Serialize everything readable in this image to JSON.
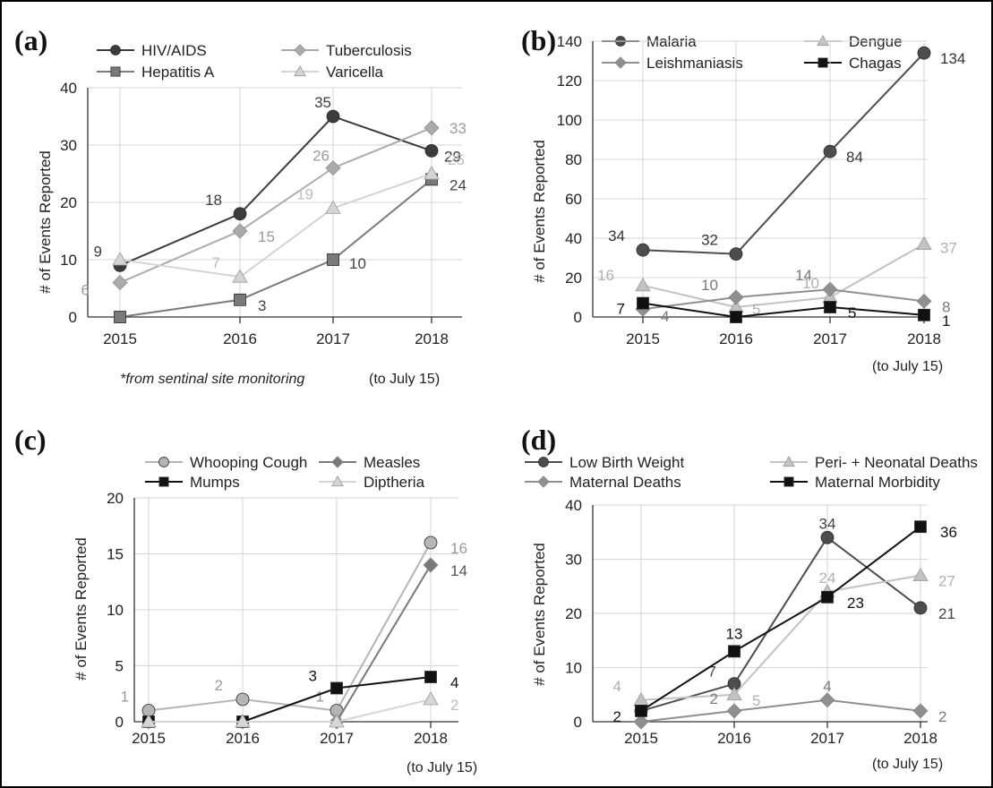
{
  "chart_data": [
    {
      "id": "a",
      "type": "line",
      "panel_label": "(a)",
      "ylabel": "# of Events Reported",
      "x": [
        "2015",
        "2016",
        "2017",
        "2018"
      ],
      "x_note": "(to July 15)",
      "footnote": "*from sentinal site monitoring",
      "ylim": [
        0,
        40
      ],
      "yticks": [
        "0",
        "10",
        "20",
        "30",
        "40"
      ],
      "grid": true,
      "legend_position": "top",
      "series": [
        {
          "name": "HIV/AIDS",
          "values": [
            9,
            18,
            35,
            29
          ],
          "labels": [
            "9",
            "18",
            "35",
            "29"
          ],
          "color": "#3c3c3c",
          "marker": "circle",
          "label_color": "#3c3c3c"
        },
        {
          "name": "Tuberculosis",
          "values": [
            6,
            15,
            26,
            33
          ],
          "labels": [
            "6",
            "15",
            "26",
            "33"
          ],
          "color": "#ababab",
          "marker": "diamond",
          "label_color": "#9a9a9a"
        },
        {
          "name": "Hepatitis A",
          "values": [
            0,
            3,
            10,
            24
          ],
          "labels": [
            "",
            "3",
            "10",
            "24"
          ],
          "color": "#7a7a7a",
          "marker": "square",
          "label_color": "#444444"
        },
        {
          "name": "Varicella",
          "values": [
            10,
            7,
            19,
            25
          ],
          "labels": [
            "",
            "7",
            "19",
            "25"
          ],
          "color": "#d4d4d4",
          "marker": "triangle",
          "label_color": "#bdbdbd"
        }
      ]
    },
    {
      "id": "b",
      "type": "line",
      "panel_label": "(b)",
      "ylabel": "# of Events Reported",
      "x": [
        "2015",
        "2016",
        "2017",
        "2018"
      ],
      "x_note": "(to  July 15)",
      "ylim": [
        0,
        140
      ],
      "yticks": [
        "0",
        "20",
        "40",
        "60",
        "80",
        "100",
        "120",
        "140"
      ],
      "grid": true,
      "legend_position": "top",
      "series": [
        {
          "name": "Malaria",
          "values": [
            34,
            32,
            84,
            134
          ],
          "labels": [
            "34",
            "32",
            "84",
            "134"
          ],
          "color": "#4d4d4d",
          "marker": "circle",
          "label_color": "#333333"
        },
        {
          "name": "Dengue",
          "values": [
            16,
            5,
            10,
            37
          ],
          "labels": [
            "16",
            "5",
            "10",
            "37"
          ],
          "color": "#c2c2c2",
          "marker": "triangle",
          "label_color": "#b0b0b0"
        },
        {
          "name": "Leishmaniasis",
          "values": [
            4,
            10,
            14,
            8
          ],
          "labels": [
            "4",
            "10",
            "14",
            "8"
          ],
          "color": "#8f8f8f",
          "marker": "diamond",
          "label_color": "#7a7a7a"
        },
        {
          "name": "Chagas",
          "values": [
            7,
            0,
            5,
            1
          ],
          "labels": [
            "7",
            "",
            "5",
            "1"
          ],
          "color": "#111111",
          "marker": "square",
          "label_color": "#111111"
        }
      ]
    },
    {
      "id": "c",
      "type": "line",
      "panel_label": "(c)",
      "ylabel": "# of Events Reported",
      "x": [
        "2015",
        "2016",
        "2017",
        "2018"
      ],
      "x_note": "(to  July 15)",
      "ylim": [
        0,
        20
      ],
      "yticks": [
        "0",
        "5",
        "10",
        "15",
        "20"
      ],
      "grid": true,
      "legend_position": "top",
      "series": [
        {
          "name": "Whooping Cough",
          "values": [
            1,
            2,
            1,
            16
          ],
          "labels": [
            "1",
            "2",
            "1",
            "16"
          ],
          "color": "#b5b5b5",
          "marker": "circle",
          "label_color": "#9a9a9a"
        },
        {
          "name": "Measles",
          "values": [
            0,
            0,
            0,
            14
          ],
          "labels": [
            "",
            "",
            "",
            "14"
          ],
          "color": "#7a7a7a",
          "marker": "diamond",
          "label_color": "#555555"
        },
        {
          "name": "Mumps",
          "values": [
            0,
            0,
            3,
            4
          ],
          "labels": [
            "",
            "",
            "3",
            "4"
          ],
          "color": "#111111",
          "marker": "square",
          "label_color": "#111111"
        },
        {
          "name": "Diptheria",
          "values": [
            0,
            0,
            0,
            2
          ],
          "labels": [
            "",
            "",
            "",
            "2"
          ],
          "color": "#d6d6d6",
          "marker": "triangle",
          "label_color": "#bdbdbd"
        }
      ]
    },
    {
      "id": "d",
      "type": "line",
      "panel_label": "(d)",
      "ylabel": "# of Events Reported",
      "x": [
        "2015",
        "2016",
        "2017",
        "2018"
      ],
      "x_note": "(to  July 15)",
      "ylim": [
        0,
        40
      ],
      "yticks": [
        "0",
        "10",
        "20",
        "30",
        "40"
      ],
      "grid": true,
      "legend_position": "top",
      "series": [
        {
          "name": "Low Birth Weight",
          "values": [
            2,
            7,
            34,
            21
          ],
          "labels": [
            "",
            "7",
            "34",
            "21"
          ],
          "color": "#4d4d4d",
          "marker": "circle",
          "label_color": "#444444"
        },
        {
          "name": "Peri- + Neonatal Deaths",
          "values": [
            4,
            5,
            24,
            27
          ],
          "labels": [
            "4",
            "5",
            "24",
            "27"
          ],
          "color": "#c2c2c2",
          "marker": "triangle",
          "label_color": "#b0b0b0"
        },
        {
          "name": "Maternal Deaths",
          "values": [
            0,
            2,
            4,
            2
          ],
          "labels": [
            "",
            "2",
            "4",
            "2"
          ],
          "color": "#8f8f8f",
          "marker": "diamond",
          "label_color": "#7a7a7a"
        },
        {
          "name": "Maternal Morbidity",
          "values": [
            2,
            13,
            23,
            36
          ],
          "labels": [
            "2",
            "13",
            "23",
            "36"
          ],
          "color": "#111111",
          "marker": "square",
          "label_color": "#111111"
        }
      ]
    }
  ]
}
